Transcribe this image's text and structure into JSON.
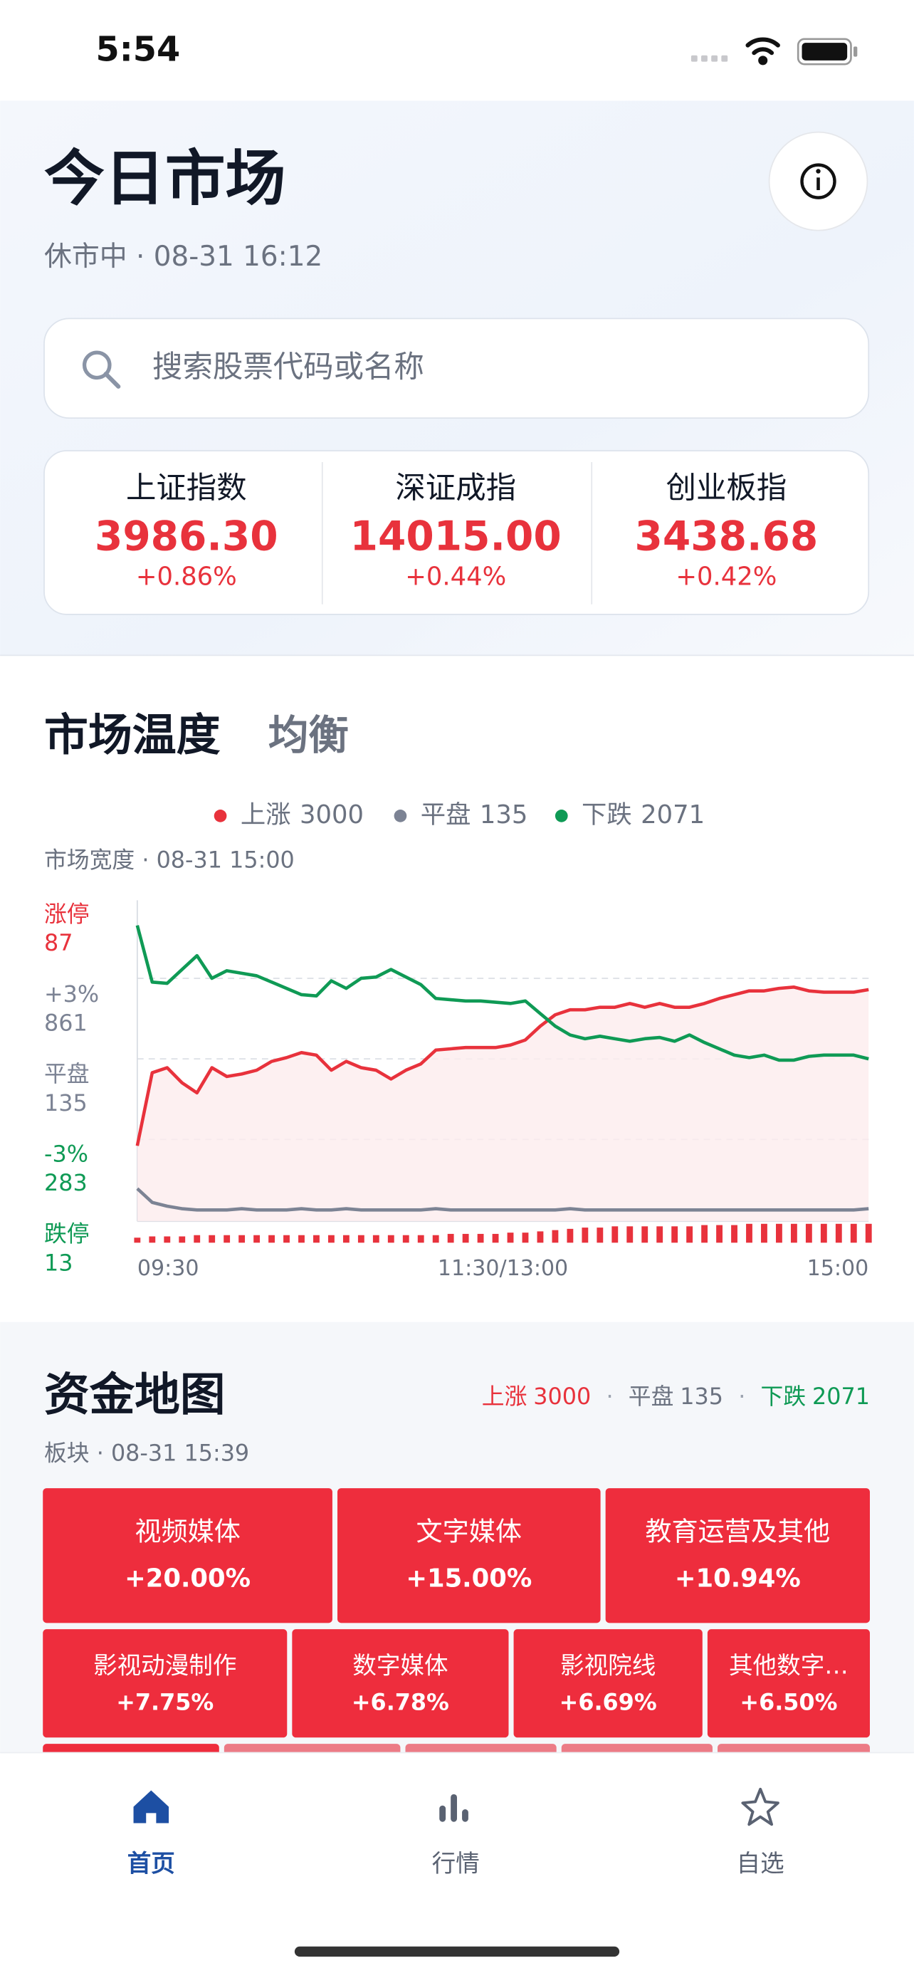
{
  "status_bar": {
    "time": "5:54"
  },
  "header": {
    "title": "今日市场",
    "status": "休市中 · 08-31 16:12",
    "search_placeholder": "搜索股票代码或名称"
  },
  "indices": [
    {
      "name": "上证指数",
      "value": "3986.30",
      "change": "+0.86%"
    },
    {
      "name": "深证成指",
      "value": "14015.00",
      "change": "+0.44%"
    },
    {
      "name": "创业板指",
      "value": "3438.68",
      "change": "+0.42%"
    }
  ],
  "temperature": {
    "title": "市场温度",
    "level": "均衡",
    "caption": "市场宽度 · 08-31 15:00"
  },
  "chart_data": {
    "type": "line",
    "series": [
      {
        "name": "上涨",
        "count": 3000,
        "color": "#e8323c",
        "values": [
          60,
          118,
          122,
          110,
          102,
          122,
          115,
          117,
          120,
          127,
          130,
          134,
          132,
          120,
          127,
          122,
          120,
          113,
          120,
          125,
          136,
          137,
          138,
          138,
          138,
          140,
          144,
          155,
          164,
          168,
          168,
          170,
          170,
          173,
          170,
          173,
          170,
          170,
          173,
          177,
          180,
          183,
          183,
          185,
          186,
          183,
          182,
          182,
          182,
          184
        ]
      },
      {
        "name": "平盘",
        "count": 135,
        "color": "#7c8394",
        "values": [
          26,
          15,
          12,
          10,
          9,
          9,
          9,
          10,
          9,
          9,
          9,
          10,
          9,
          9,
          10,
          9,
          9,
          9,
          9,
          9,
          10,
          9,
          9,
          9,
          9,
          9,
          9,
          9,
          9,
          10,
          9,
          9,
          9,
          9,
          9,
          9,
          9,
          9,
          9,
          9,
          9,
          9,
          9,
          9,
          9,
          9,
          9,
          9,
          9,
          10
        ]
      },
      {
        "name": "下跌",
        "count": 2071,
        "color": "#0f9a55",
        "values": [
          235,
          190,
          189,
          200,
          211,
          193,
          199,
          197,
          195,
          190,
          185,
          180,
          179,
          191,
          185,
          193,
          194,
          200,
          194,
          188,
          177,
          176,
          175,
          175,
          174,
          173,
          175,
          165,
          155,
          148,
          145,
          147,
          145,
          143,
          145,
          146,
          143,
          148,
          142,
          137,
          132,
          130,
          132,
          128,
          128,
          131,
          132,
          132,
          132,
          129
        ]
      }
    ],
    "ylim": [
      0,
      255
    ],
    "yticks": [
      65,
      129,
      193
    ],
    "grid": true,
    "xlim": [
      0,
      49
    ],
    "xticks": [
      {
        "value": 0,
        "label": "09:30"
      },
      {
        "value": 24.5,
        "label": "11:30/13:00"
      },
      {
        "value": 49,
        "label": "15:00"
      }
    ],
    "side_labels": [
      {
        "label": "涨停",
        "count": 87,
        "color": "#e8323c"
      },
      {
        "label": "+3%",
        "count": 861,
        "color": "#7c8394"
      },
      {
        "label": "平盘",
        "count": 135,
        "color": "#7c8394"
      },
      {
        "label": "-3%",
        "count": 283,
        "color": "#0f9a55"
      },
      {
        "label": "跌停",
        "count": 13,
        "color": "#0f9a55"
      }
    ],
    "bars": {
      "color": "#e8323c",
      "ylim": [
        0,
        20
      ],
      "values": [
        4,
        5,
        5,
        5,
        6,
        6,
        6,
        6,
        6,
        6,
        6,
        6,
        6,
        6,
        6,
        6,
        6,
        6,
        6,
        6,
        6,
        7,
        7,
        7,
        7,
        8,
        8,
        9,
        10,
        11,
        12,
        12,
        13,
        13,
        13,
        13,
        13,
        13,
        14,
        14,
        14,
        15,
        15,
        15,
        15,
        15,
        15,
        15,
        15,
        15
      ]
    }
  },
  "fund_map": {
    "title": "资金地图",
    "caption": "板块 · 08-31 15:39",
    "tiles": [
      [
        {
          "name": "视频媒体",
          "change": "+20.00%"
        },
        {
          "name": "文字媒体",
          "change": "+15.00%"
        },
        {
          "name": "教育运营及其他",
          "change": "+10.94%"
        }
      ],
      [
        {
          "name": "影视动漫制作",
          "change": "+7.75%"
        },
        {
          "name": "数字媒体",
          "change": "+6.78%"
        },
        {
          "name": "影视院线",
          "change": "+6.69%"
        },
        {
          "name": "其他数字…",
          "change": "+6.50%"
        }
      ]
    ]
  },
  "tab_bar": {
    "tabs": [
      "首页",
      "行情",
      "自选"
    ]
  }
}
